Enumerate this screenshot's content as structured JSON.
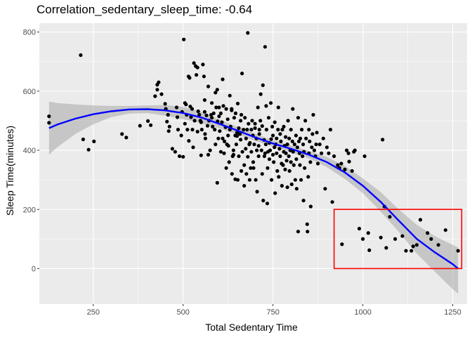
{
  "chart_data": {
    "type": "scatter",
    "title": "Correlation_sedentary_sleep_time: -0.64",
    "xlabel": "Total Sedentary Time",
    "ylabel": "Sleep Time(minutes)",
    "xlim": [
      100,
      1290
    ],
    "ylim": [
      -120,
      830
    ],
    "x_ticks": [
      250,
      500,
      750,
      1000,
      1250
    ],
    "x_tick_labels": [
      "250",
      "500",
      "750",
      "1000",
      "1250"
    ],
    "y_ticks": [
      0,
      200,
      400,
      600,
      800
    ],
    "y_tick_labels": [
      "0",
      "200",
      "400",
      "600",
      "800"
    ],
    "grid": true,
    "legend": "none",
    "points": [
      [
        127,
        515
      ],
      [
        127,
        493
      ],
      [
        215,
        722
      ],
      [
        222,
        437
      ],
      [
        237,
        402
      ],
      [
        252,
        430
      ],
      [
        330,
        455
      ],
      [
        342,
        443
      ],
      [
        380,
        483
      ],
      [
        402,
        499
      ],
      [
        410,
        485
      ],
      [
        422,
        583
      ],
      [
        428,
        622
      ],
      [
        428,
        605
      ],
      [
        432,
        630
      ],
      [
        440,
        590
      ],
      [
        450,
        557
      ],
      [
        452,
        540
      ],
      [
        455,
        497
      ],
      [
        458,
        520
      ],
      [
        460,
        465
      ],
      [
        462,
        480
      ],
      [
        470,
        405
      ],
      [
        478,
        395
      ],
      [
        482,
        545
      ],
      [
        484,
        512
      ],
      [
        486,
        470
      ],
      [
        490,
        380
      ],
      [
        495,
        450
      ],
      [
        497,
        530
      ],
      [
        500,
        378
      ],
      [
        502,
        775
      ],
      [
        505,
        560
      ],
      [
        505,
        490
      ],
      [
        508,
        555
      ],
      [
        510,
        520
      ],
      [
        512,
        470
      ],
      [
        515,
        650
      ],
      [
        516,
        432
      ],
      [
        518,
        645
      ],
      [
        520,
        548
      ],
      [
        522,
        512
      ],
      [
        525,
        540
      ],
      [
        526,
        470
      ],
      [
        528,
        410
      ],
      [
        530,
        695
      ],
      [
        532,
        500
      ],
      [
        535,
        685
      ],
      [
        537,
        655
      ],
      [
        540,
        680
      ],
      [
        540,
        463
      ],
      [
        542,
        532
      ],
      [
        545,
        520
      ],
      [
        548,
        500
      ],
      [
        550,
        495
      ],
      [
        550,
        383
      ],
      [
        552,
        470
      ],
      [
        555,
        690
      ],
      [
        558,
        650
      ],
      [
        560,
        530
      ],
      [
        560,
        570
      ],
      [
        561,
        455
      ],
      [
        562,
        440
      ],
      [
        565,
        518
      ],
      [
        568,
        483
      ],
      [
        570,
        616
      ],
      [
        570,
        385
      ],
      [
        572,
        500
      ],
      [
        575,
        400
      ],
      [
        578,
        520
      ],
      [
        580,
        560
      ],
      [
        580,
        510
      ],
      [
        582,
        480
      ],
      [
        585,
        525
      ],
      [
        588,
        470
      ],
      [
        590,
        595
      ],
      [
        590,
        420
      ],
      [
        592,
        545
      ],
      [
        595,
        605
      ],
      [
        595,
        290
      ],
      [
        596,
        498
      ],
      [
        598,
        440
      ],
      [
        600,
        545
      ],
      [
        600,
        515
      ],
      [
        602,
        465
      ],
      [
        605,
        395
      ],
      [
        605,
        525
      ],
      [
        608,
        495
      ],
      [
        610,
        640
      ],
      [
        610,
        440
      ],
      [
        612,
        550
      ],
      [
        614,
        390
      ],
      [
        615,
        430
      ],
      [
        618,
        478
      ],
      [
        620,
        540
      ],
      [
        620,
        340
      ],
      [
        622,
        420
      ],
      [
        624,
        505
      ],
      [
        625,
        450
      ],
      [
        626,
        415
      ],
      [
        628,
        360
      ],
      [
        630,
        470
      ],
      [
        630,
        585
      ],
      [
        632,
        480
      ],
      [
        635,
        535
      ],
      [
        635,
        540
      ],
      [
        636,
        320
      ],
      [
        638,
        380
      ],
      [
        640,
        400
      ],
      [
        640,
        385
      ],
      [
        642,
        510
      ],
      [
        645,
        450
      ],
      [
        645,
        302
      ],
      [
        646,
        525
      ],
      [
        648,
        420
      ],
      [
        650,
        448
      ],
      [
        650,
        460
      ],
      [
        652,
        558
      ],
      [
        652,
        300
      ],
      [
        655,
        475
      ],
      [
        655,
        380
      ],
      [
        658,
        455
      ],
      [
        660,
        500
      ],
      [
        660,
        436
      ],
      [
        662,
        520
      ],
      [
        662,
        330
      ],
      [
        664,
        660
      ],
      [
        665,
        395
      ],
      [
        668,
        470
      ],
      [
        670,
        350
      ],
      [
        670,
        280
      ],
      [
        672,
        510
      ],
      [
        674,
        405
      ],
      [
        675,
        440
      ],
      [
        676,
        320
      ],
      [
        678,
        470
      ],
      [
        680,
        378
      ],
      [
        680,
        797
      ],
      [
        682,
        490
      ],
      [
        684,
        420
      ],
      [
        685,
        300
      ],
      [
        686,
        425
      ],
      [
        688,
        340
      ],
      [
        690,
        395
      ],
      [
        690,
        470
      ],
      [
        692,
        500
      ],
      [
        694,
        450
      ],
      [
        695,
        360
      ],
      [
        696,
        340
      ],
      [
        698,
        420
      ],
      [
        700,
        475
      ],
      [
        700,
        490
      ],
      [
        702,
        300
      ],
      [
        704,
        440
      ],
      [
        705,
        400
      ],
      [
        706,
        260
      ],
      [
        708,
        545
      ],
      [
        710,
        380
      ],
      [
        710,
        415
      ],
      [
        712,
        455
      ],
      [
        712,
        470
      ],
      [
        715,
        500
      ],
      [
        716,
        590
      ],
      [
        718,
        400
      ],
      [
        720,
        320
      ],
      [
        720,
        482
      ],
      [
        722,
        620
      ],
      [
        723,
        230
      ],
      [
        725,
        435
      ],
      [
        726,
        380
      ],
      [
        728,
        750
      ],
      [
        728,
        390
      ],
      [
        730,
        420
      ],
      [
        731,
        550
      ],
      [
        732,
        470
      ],
      [
        734,
        220
      ],
      [
        735,
        340
      ],
      [
        736,
        395
      ],
      [
        738,
        510
      ],
      [
        740,
        425
      ],
      [
        740,
        370
      ],
      [
        742,
        400
      ],
      [
        744,
        560
      ],
      [
        745,
        438
      ],
      [
        746,
        300
      ],
      [
        748,
        480
      ],
      [
        750,
        450
      ],
      [
        750,
        385
      ],
      [
        752,
        360
      ],
      [
        754,
        410
      ],
      [
        755,
        495
      ],
      [
        756,
        255
      ],
      [
        758,
        420
      ],
      [
        760,
        440
      ],
      [
        760,
        390
      ],
      [
        762,
        330
      ],
      [
        764,
        470
      ],
      [
        765,
        545
      ],
      [
        766,
        310
      ],
      [
        768,
        405
      ],
      [
        770,
        380
      ],
      [
        770,
        455
      ],
      [
        772,
        430
      ],
      [
        774,
        355
      ],
      [
        775,
        280
      ],
      [
        776,
        470
      ],
      [
        778,
        350
      ],
      [
        780,
        395
      ],
      [
        780,
        480
      ],
      [
        782,
        415
      ],
      [
        784,
        335
      ],
      [
        785,
        445
      ],
      [
        786,
        390
      ],
      [
        788,
        365
      ],
      [
        790,
        420
      ],
      [
        790,
        275
      ],
      [
        792,
        500
      ],
      [
        794,
        380
      ],
      [
        795,
        440
      ],
      [
        796,
        330
      ],
      [
        798,
        400
      ],
      [
        800,
        360
      ],
      [
        800,
        470
      ],
      [
        802,
        285
      ],
      [
        804,
        430
      ],
      [
        805,
        540
      ],
      [
        806,
        395
      ],
      [
        808,
        350
      ],
      [
        810,
        420
      ],
      [
        812,
        300
      ],
      [
        814,
        450
      ],
      [
        815,
        370
      ],
      [
        816,
        270
      ],
      [
        818,
        410
      ],
      [
        820,
        510
      ],
      [
        820,
        125
      ],
      [
        822,
        430
      ],
      [
        824,
        390
      ],
      [
        825,
        350
      ],
      [
        826,
        440
      ],
      [
        828,
        300
      ],
      [
        830,
        470
      ],
      [
        832,
        380
      ],
      [
        834,
        420
      ],
      [
        835,
        230
      ],
      [
        836,
        395
      ],
      [
        838,
        340
      ],
      [
        840,
        500
      ],
      [
        842,
        440
      ],
      [
        845,
        150
      ],
      [
        846,
        125
      ],
      [
        848,
        310
      ],
      [
        850,
        390
      ],
      [
        850,
        470
      ],
      [
        852,
        430
      ],
      [
        854,
        360
      ],
      [
        855,
        210
      ],
      [
        858,
        410
      ],
      [
        860,
        455
      ],
      [
        862,
        520
      ],
      [
        865,
        400
      ],
      [
        868,
        380
      ],
      [
        870,
        420
      ],
      [
        872,
        460
      ],
      [
        875,
        355
      ],
      [
        880,
        420
      ],
      [
        885,
        390
      ],
      [
        890,
        440
      ],
      [
        895,
        270
      ],
      [
        900,
        410
      ],
      [
        905,
        390
      ],
      [
        910,
        470
      ],
      [
        915,
        225
      ],
      [
        920,
        380
      ],
      [
        930,
        350
      ],
      [
        935,
        340
      ],
      [
        940,
        355
      ],
      [
        942,
        82
      ],
      [
        950,
        335
      ],
      [
        955,
        400
      ],
      [
        960,
        390
      ],
      [
        962,
        362
      ],
      [
        970,
        330
      ],
      [
        975,
        395
      ],
      [
        978,
        400
      ],
      [
        990,
        135
      ],
      [
        1000,
        100
      ],
      [
        1005,
        380
      ],
      [
        1015,
        120
      ],
      [
        1018,
        62
      ],
      [
        1050,
        105
      ],
      [
        1055,
        436
      ],
      [
        1060,
        210
      ],
      [
        1065,
        70
      ],
      [
        1075,
        175
      ],
      [
        1090,
        100
      ],
      [
        1110,
        110
      ],
      [
        1120,
        60
      ],
      [
        1135,
        60
      ],
      [
        1140,
        75
      ],
      [
        1150,
        80
      ],
      [
        1160,
        165
      ],
      [
        1180,
        120
      ],
      [
        1190,
        100
      ],
      [
        1210,
        80
      ],
      [
        1230,
        130
      ],
      [
        1265,
        60
      ]
    ],
    "trend_line": {
      "type": "smooth",
      "color": "#0000ff",
      "confidence_band": true,
      "x": [
        127,
        150,
        200,
        250,
        300,
        350,
        400,
        450,
        500,
        550,
        600,
        650,
        700,
        750,
        800,
        850,
        900,
        950,
        1000,
        1050,
        1100,
        1150,
        1200,
        1250,
        1265
      ],
      "y": [
        475,
        487,
        507,
        522,
        532,
        538,
        539,
        535,
        526,
        511,
        490,
        467,
        444,
        423,
        405,
        385,
        360,
        325,
        280,
        225,
        162,
        100,
        55,
        15,
        0
      ],
      "band_upper": [
        565,
        560,
        555,
        552,
        550,
        550,
        552,
        553,
        547,
        530,
        505,
        480,
        456,
        434,
        416,
        398,
        377,
        347,
        305,
        258,
        200,
        148,
        110,
        80,
        72
      ],
      "band_lower": [
        385,
        410,
        455,
        488,
        512,
        524,
        526,
        517,
        505,
        492,
        475,
        454,
        432,
        412,
        394,
        372,
        343,
        303,
        255,
        192,
        124,
        50,
        -10,
        -70,
        -85
      ]
    },
    "highlight_box": {
      "color": "#ff0000",
      "x_range": [
        920,
        1275
      ],
      "y_range": [
        0,
        200
      ]
    },
    "colors": {
      "panel": "#ebebeb",
      "grid_major": "#ffffff",
      "points": "#000000",
      "band": "#999999"
    }
  }
}
